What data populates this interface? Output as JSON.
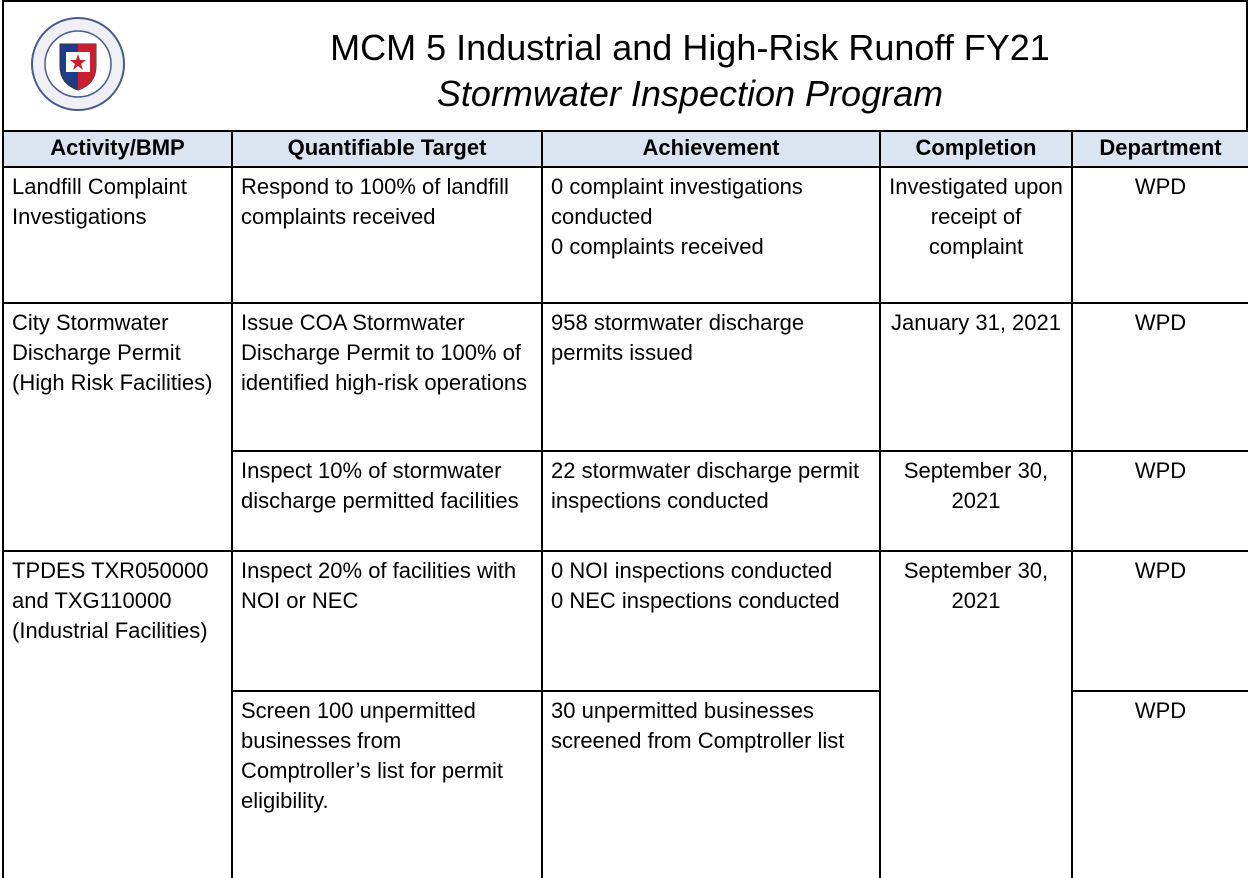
{
  "header": {
    "title": "MCM 5 Industrial and High-Risk Runoff FY21",
    "subtitle": "Stormwater Inspection Program"
  },
  "table": {
    "columns": [
      "Activity/BMP",
      "Quantifiable Target",
      "Achievement",
      "Completion",
      "Department"
    ],
    "rows": [
      [
        "Landfill Complaint Investigations",
        "Respond to 100% of landfill complaints received",
        "0 complaint investigations conducted\n0 complaints received",
        "Investigated upon receipt of complaint",
        "WPD"
      ],
      [
        "City Stormwater Discharge Permit (High Risk Facilities)",
        "Issue COA Stormwater Discharge Permit to 100% of identified high-risk operations",
        "958 stormwater discharge permits issued",
        "January 31, 2021",
        "WPD"
      ],
      [
        "Inspect 10% of stormwater discharge permitted facilities",
        "22 stormwater discharge permit inspections conducted",
        "September 30, 2021",
        "WPD"
      ],
      [
        "TPDES TXR050000 and TXG110000 (Industrial Facilities)",
        "Inspect 20% of facilities with NOI or NEC",
        "0 NOI inspections conducted\n0 NEC inspections conducted",
        "September 30, 2021",
        "WPD"
      ],
      [
        "Screen 100 unpermitted businesses from Comptroller’s list for permit eligibility.",
        "30 unpermitted businesses screened from Comptroller list",
        "WPD"
      ]
    ]
  }
}
